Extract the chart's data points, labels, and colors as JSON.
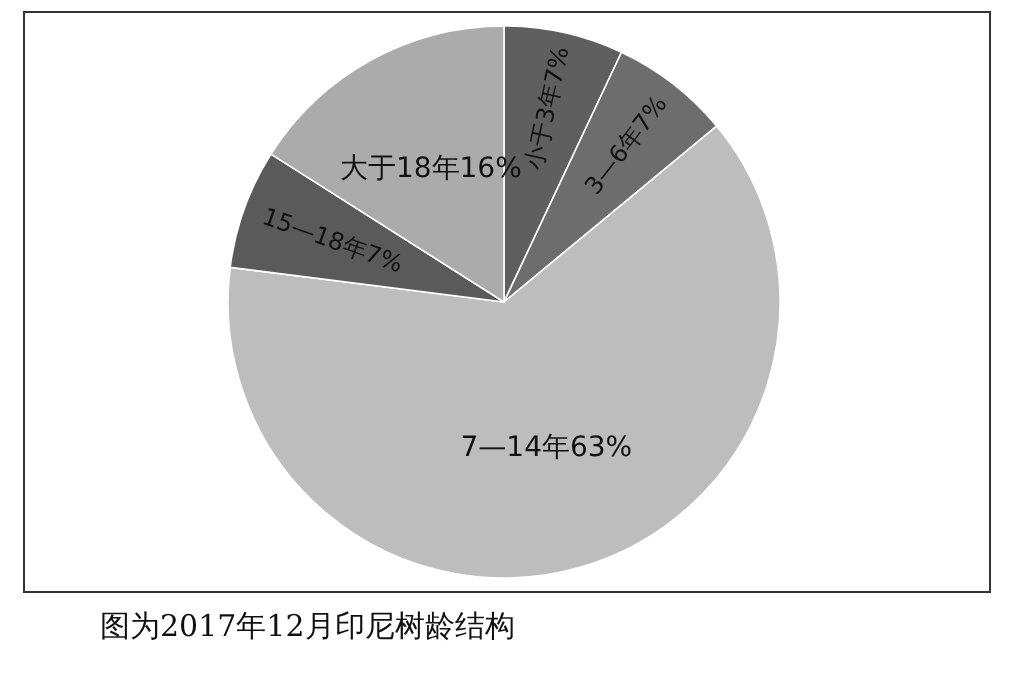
{
  "chart_data": {
    "type": "pie",
    "categories": [
      "小于3年",
      "3—6年",
      "7—14年",
      "15—18年",
      "大于18年"
    ],
    "values": [
      7,
      7,
      63,
      7,
      16
    ],
    "colors": [
      "#5f5f5f",
      "#6d6d6d",
      "#bdbdbd",
      "#5a5a5a",
      "#ababab"
    ],
    "value_labels": [
      "7%",
      "7%",
      "63%",
      "7%",
      "16%"
    ],
    "annotations": [
      "图为2017年12月印尼树龄结构"
    ]
  }
}
